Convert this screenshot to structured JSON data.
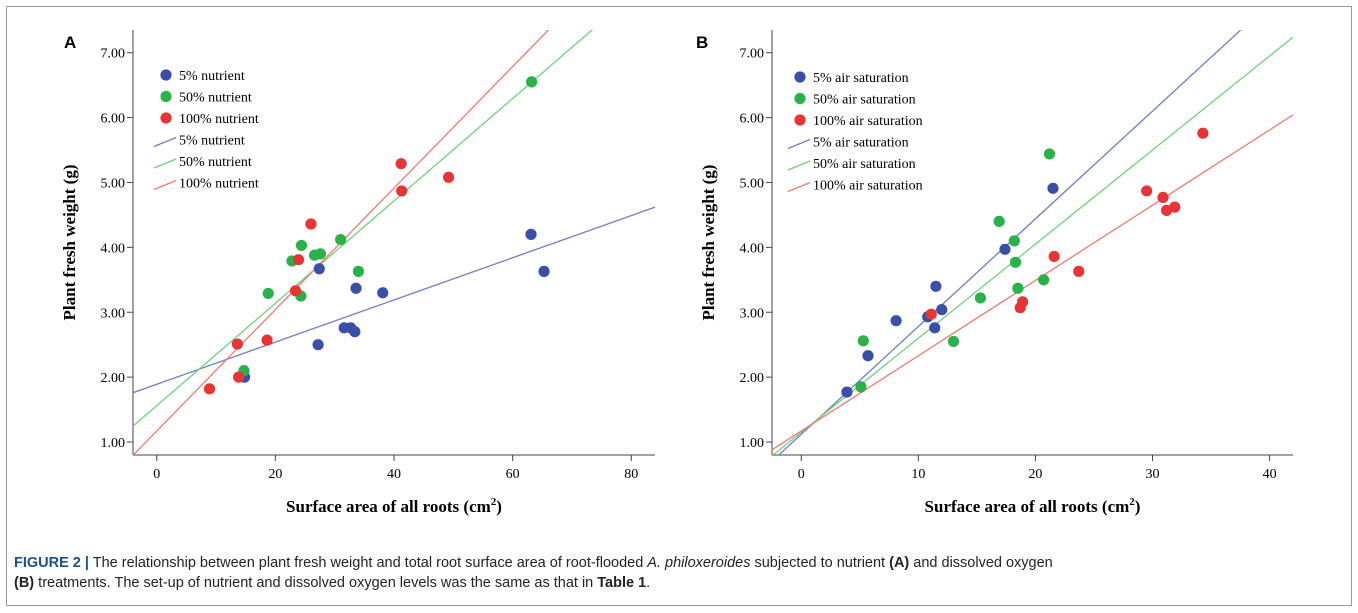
{
  "chart_data": [
    {
      "type": "scatter",
      "panel": "A",
      "xlabel": "Surface area of all roots (cm",
      "xlabel_sup": "2",
      "xlabel_close": ")",
      "ylabel": "Plant fresh weight (g)",
      "xlim": [
        -4,
        84
      ],
      "ylim": [
        0.8,
        7.35
      ],
      "x_ticks": [
        0,
        20,
        40,
        60,
        80
      ],
      "x_tick_labels": [
        "0",
        "20",
        "40",
        "60",
        "80"
      ],
      "y_ticks": [
        1,
        2,
        3,
        4,
        5,
        6,
        7
      ],
      "y_tick_labels": [
        "1.00",
        "2.00",
        "3.00",
        "4.00",
        "5.00",
        "6.00",
        "7.00"
      ],
      "grid": false,
      "legend_position": "top-left",
      "series": [
        {
          "name": "5% nutrient",
          "color": "#3a4fa8",
          "points": [
            [
              14.8,
              2.0
            ],
            [
              27.2,
              2.5
            ],
            [
              27.4,
              3.67
            ],
            [
              31.6,
              2.76
            ],
            [
              32.7,
              2.76
            ],
            [
              33.4,
              2.7
            ],
            [
              33.6,
              3.37
            ],
            [
              38.1,
              3.3
            ],
            [
              63.1,
              4.2
            ],
            [
              65.3,
              3.63
            ]
          ]
        },
        {
          "name": "50% nutrient",
          "color": "#2ab24a",
          "points": [
            [
              14.7,
              2.1
            ],
            [
              18.8,
              3.29
            ],
            [
              22.8,
              3.79
            ],
            [
              24.4,
              4.03
            ],
            [
              24.3,
              3.25
            ],
            [
              26.6,
              3.88
            ],
            [
              27.6,
              3.9
            ],
            [
              31.0,
              4.12
            ],
            [
              34.0,
              3.63
            ],
            [
              63.2,
              6.55
            ]
          ]
        },
        {
          "name": "100% nutrient",
          "color": "#e83434",
          "points": [
            [
              8.9,
              1.82
            ],
            [
              13.6,
              2.51
            ],
            [
              13.8,
              2.0
            ],
            [
              18.6,
              2.57
            ],
            [
              23.4,
              3.33
            ],
            [
              23.9,
              3.81
            ],
            [
              26.0,
              4.36
            ],
            [
              41.2,
              5.29
            ],
            [
              41.3,
              4.87
            ],
            [
              49.2,
              5.08
            ]
          ]
        }
      ],
      "fit_lines": [
        {
          "name": "5% nutrient",
          "color": "#6f7ec3",
          "intercept": 1.89,
          "slope": 0.0325
        },
        {
          "name": "50% nutrient",
          "color": "#6fd27a",
          "intercept": 1.56,
          "slope": 0.0789
        },
        {
          "name": "100% nutrient",
          "color": "#f07a72",
          "intercept": 1.17,
          "slope": 0.0936
        }
      ]
    },
    {
      "type": "scatter",
      "panel": "B",
      "xlabel": "Surface area of all roots (cm",
      "xlabel_sup": "2",
      "xlabel_close": ")",
      "ylabel": "Plant fresh weight (g)",
      "xlim": [
        -2.5,
        42
      ],
      "ylim": [
        0.8,
        7.35
      ],
      "x_ticks": [
        0,
        10,
        20,
        30,
        40
      ],
      "x_tick_labels": [
        "0",
        "10",
        "20",
        "30",
        "40"
      ],
      "y_ticks": [
        1,
        2,
        3,
        4,
        5,
        6,
        7
      ],
      "y_tick_labels": [
        "1.00",
        "2.00",
        "3.00",
        "4.00",
        "5.00",
        "6.00",
        "7.00"
      ],
      "grid": false,
      "legend_position": "top-left",
      "series": [
        {
          "name": "5% air saturation",
          "color": "#3a4fa8",
          "points": [
            [
              3.9,
              1.77
            ],
            [
              5.7,
              2.33
            ],
            [
              8.1,
              2.87
            ],
            [
              10.8,
              2.93
            ],
            [
              11.4,
              2.76
            ],
            [
              11.5,
              3.4
            ],
            [
              12.0,
              3.04
            ],
            [
              17.4,
              3.97
            ],
            [
              21.5,
              4.91
            ]
          ]
        },
        {
          "name": "50% air saturation",
          "color": "#2ab24a",
          "points": [
            [
              5.1,
              1.85
            ],
            [
              5.3,
              2.56
            ],
            [
              13.0,
              2.55
            ],
            [
              15.3,
              3.22
            ],
            [
              16.9,
              4.4
            ],
            [
              18.2,
              4.1
            ],
            [
              18.3,
              3.77
            ],
            [
              18.5,
              3.37
            ],
            [
              20.7,
              3.5
            ],
            [
              21.2,
              5.44
            ]
          ]
        },
        {
          "name": "100% air saturation",
          "color": "#e83434",
          "points": [
            [
              11.1,
              2.97
            ],
            [
              18.7,
              3.07
            ],
            [
              18.9,
              3.16
            ],
            [
              21.6,
              3.86
            ],
            [
              23.7,
              3.63
            ],
            [
              29.5,
              4.87
            ],
            [
              30.9,
              4.77
            ],
            [
              31.2,
              4.57
            ],
            [
              31.9,
              4.62
            ],
            [
              34.3,
              5.76
            ]
          ]
        }
      ],
      "fit_lines": [
        {
          "name": "5% air saturation",
          "color": "#6f7ec3",
          "intercept": 1.12,
          "slope": 0.166
        },
        {
          "name": "50% air saturation",
          "color": "#6fd27a",
          "intercept": 1.15,
          "slope": 0.145
        },
        {
          "name": "100% air saturation",
          "color": "#f07a72",
          "intercept": 1.17,
          "slope": 0.116
        }
      ]
    }
  ],
  "caption": {
    "label": "FIGURE 2 |",
    "text_1": " The relationship between plant fresh weight and total root surface area of root-flooded ",
    "species": "A. philoxeroides",
    "text_2": " subjected to nutrient ",
    "ref_a": "(A)",
    "text_3": " and dissolved oxygen ",
    "ref_b": "(B)",
    "text_4": " treatments. The set-up of nutrient and dissolved oxygen levels was the same as that in ",
    "table_ref": "Table 1",
    "text_5": "."
  }
}
